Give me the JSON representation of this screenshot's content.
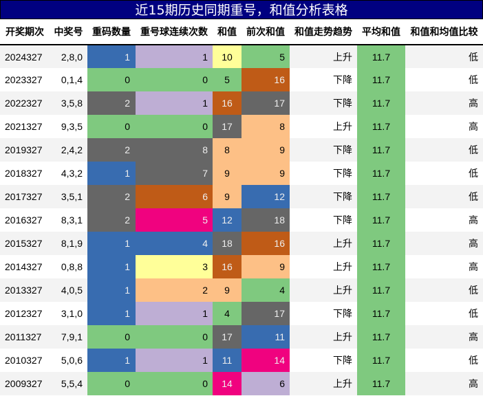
{
  "title": "近15期历史同期重号，和值分析表格",
  "colors": {
    "title_bg": "#000080",
    "green": "#7fc97f",
    "purple": "#beaed4",
    "orange_light": "#fdc086",
    "yellow": "#ffff99",
    "blue": "#386cb0",
    "pink": "#f0027f",
    "brown": "#bf5b17",
    "gray": "#666666"
  },
  "headers": [
    "开奖期次",
    "中奖号",
    "重码数量",
    "重号球连续次数",
    "和值",
    "前次和值",
    "和值走势趋势",
    "平均和值",
    "和值和均值比较"
  ],
  "rows": [
    {
      "period": "2024327",
      "numbers": "2,8,0",
      "repeat": "1",
      "repeat_c": "blue",
      "consec": "1",
      "consec_c": "purple",
      "sum": "10",
      "sum_c": "yellow",
      "prev": "5",
      "prev_c": "green",
      "trend": "上升",
      "avg": "11.7",
      "cmp": "低"
    },
    {
      "period": "2023327",
      "numbers": "0,1,4",
      "repeat": "0",
      "repeat_c": "green",
      "consec": "0",
      "consec_c": "green",
      "sum": "5",
      "sum_c": "green",
      "prev": "16",
      "prev_c": "brown",
      "trend": "下降",
      "avg": "11.7",
      "cmp": "低"
    },
    {
      "period": "2022327",
      "numbers": "3,5,8",
      "repeat": "2",
      "repeat_c": "gray",
      "consec": "1",
      "consec_c": "purple",
      "sum": "16",
      "sum_c": "brown",
      "prev": "17",
      "prev_c": "gray",
      "trend": "下降",
      "avg": "11.7",
      "cmp": "高"
    },
    {
      "period": "2021327",
      "numbers": "9,3,5",
      "repeat": "0",
      "repeat_c": "green",
      "consec": "0",
      "consec_c": "green",
      "sum": "17",
      "sum_c": "gray",
      "prev": "8",
      "prev_c": "orange_light",
      "trend": "上升",
      "avg": "11.7",
      "cmp": "高"
    },
    {
      "period": "2019327",
      "numbers": "2,4,2",
      "repeat": "2",
      "repeat_c": "gray",
      "consec": "8",
      "consec_c": "gray",
      "sum": "8",
      "sum_c": "orange_light",
      "prev": "9",
      "prev_c": "orange_light",
      "trend": "下降",
      "avg": "11.7",
      "cmp": "低"
    },
    {
      "period": "2018327",
      "numbers": "4,3,2",
      "repeat": "1",
      "repeat_c": "blue",
      "consec": "7",
      "consec_c": "gray",
      "sum": "9",
      "sum_c": "orange_light",
      "prev": "9",
      "prev_c": "orange_light",
      "trend": "下降",
      "avg": "11.7",
      "cmp": "低"
    },
    {
      "period": "2017327",
      "numbers": "3,5,1",
      "repeat": "2",
      "repeat_c": "gray",
      "consec": "6",
      "consec_c": "brown",
      "sum": "9",
      "sum_c": "orange_light",
      "prev": "12",
      "prev_c": "blue",
      "trend": "下降",
      "avg": "11.7",
      "cmp": "低"
    },
    {
      "period": "2016327",
      "numbers": "8,3,1",
      "repeat": "2",
      "repeat_c": "gray",
      "consec": "5",
      "consec_c": "pink",
      "sum": "12",
      "sum_c": "blue",
      "prev": "18",
      "prev_c": "gray",
      "trend": "下降",
      "avg": "11.7",
      "cmp": "高"
    },
    {
      "period": "2015327",
      "numbers": "8,1,9",
      "repeat": "1",
      "repeat_c": "blue",
      "consec": "4",
      "consec_c": "blue",
      "sum": "18",
      "sum_c": "gray",
      "prev": "16",
      "prev_c": "brown",
      "trend": "上升",
      "avg": "11.7",
      "cmp": "高"
    },
    {
      "period": "2014327",
      "numbers": "0,8,8",
      "repeat": "1",
      "repeat_c": "blue",
      "consec": "3",
      "consec_c": "yellow",
      "sum": "16",
      "sum_c": "brown",
      "prev": "9",
      "prev_c": "orange_light",
      "trend": "上升",
      "avg": "11.7",
      "cmp": "高"
    },
    {
      "period": "2013327",
      "numbers": "4,0,5",
      "repeat": "1",
      "repeat_c": "blue",
      "consec": "2",
      "consec_c": "orange_light",
      "sum": "9",
      "sum_c": "orange_light",
      "prev": "4",
      "prev_c": "green",
      "trend": "上升",
      "avg": "11.7",
      "cmp": "低"
    },
    {
      "period": "2012327",
      "numbers": "3,1,0",
      "repeat": "1",
      "repeat_c": "blue",
      "consec": "1",
      "consec_c": "purple",
      "sum": "4",
      "sum_c": "green",
      "prev": "17",
      "prev_c": "gray",
      "trend": "下降",
      "avg": "11.7",
      "cmp": "低"
    },
    {
      "period": "2011327",
      "numbers": "7,9,1",
      "repeat": "0",
      "repeat_c": "green",
      "consec": "0",
      "consec_c": "green",
      "sum": "17",
      "sum_c": "gray",
      "prev": "11",
      "prev_c": "blue",
      "trend": "上升",
      "avg": "11.7",
      "cmp": "高"
    },
    {
      "period": "2010327",
      "numbers": "5,0,6",
      "repeat": "1",
      "repeat_c": "blue",
      "consec": "1",
      "consec_c": "purple",
      "sum": "11",
      "sum_c": "blue",
      "prev": "14",
      "prev_c": "pink",
      "trend": "下降",
      "avg": "11.7",
      "cmp": "低"
    },
    {
      "period": "2009327",
      "numbers": "5,5,4",
      "repeat": "0",
      "repeat_c": "green",
      "consec": "0",
      "consec_c": "green",
      "sum": "14",
      "sum_c": "pink",
      "prev": "6",
      "prev_c": "purple",
      "trend": "上升",
      "avg": "11.7",
      "cmp": "高"
    }
  ]
}
